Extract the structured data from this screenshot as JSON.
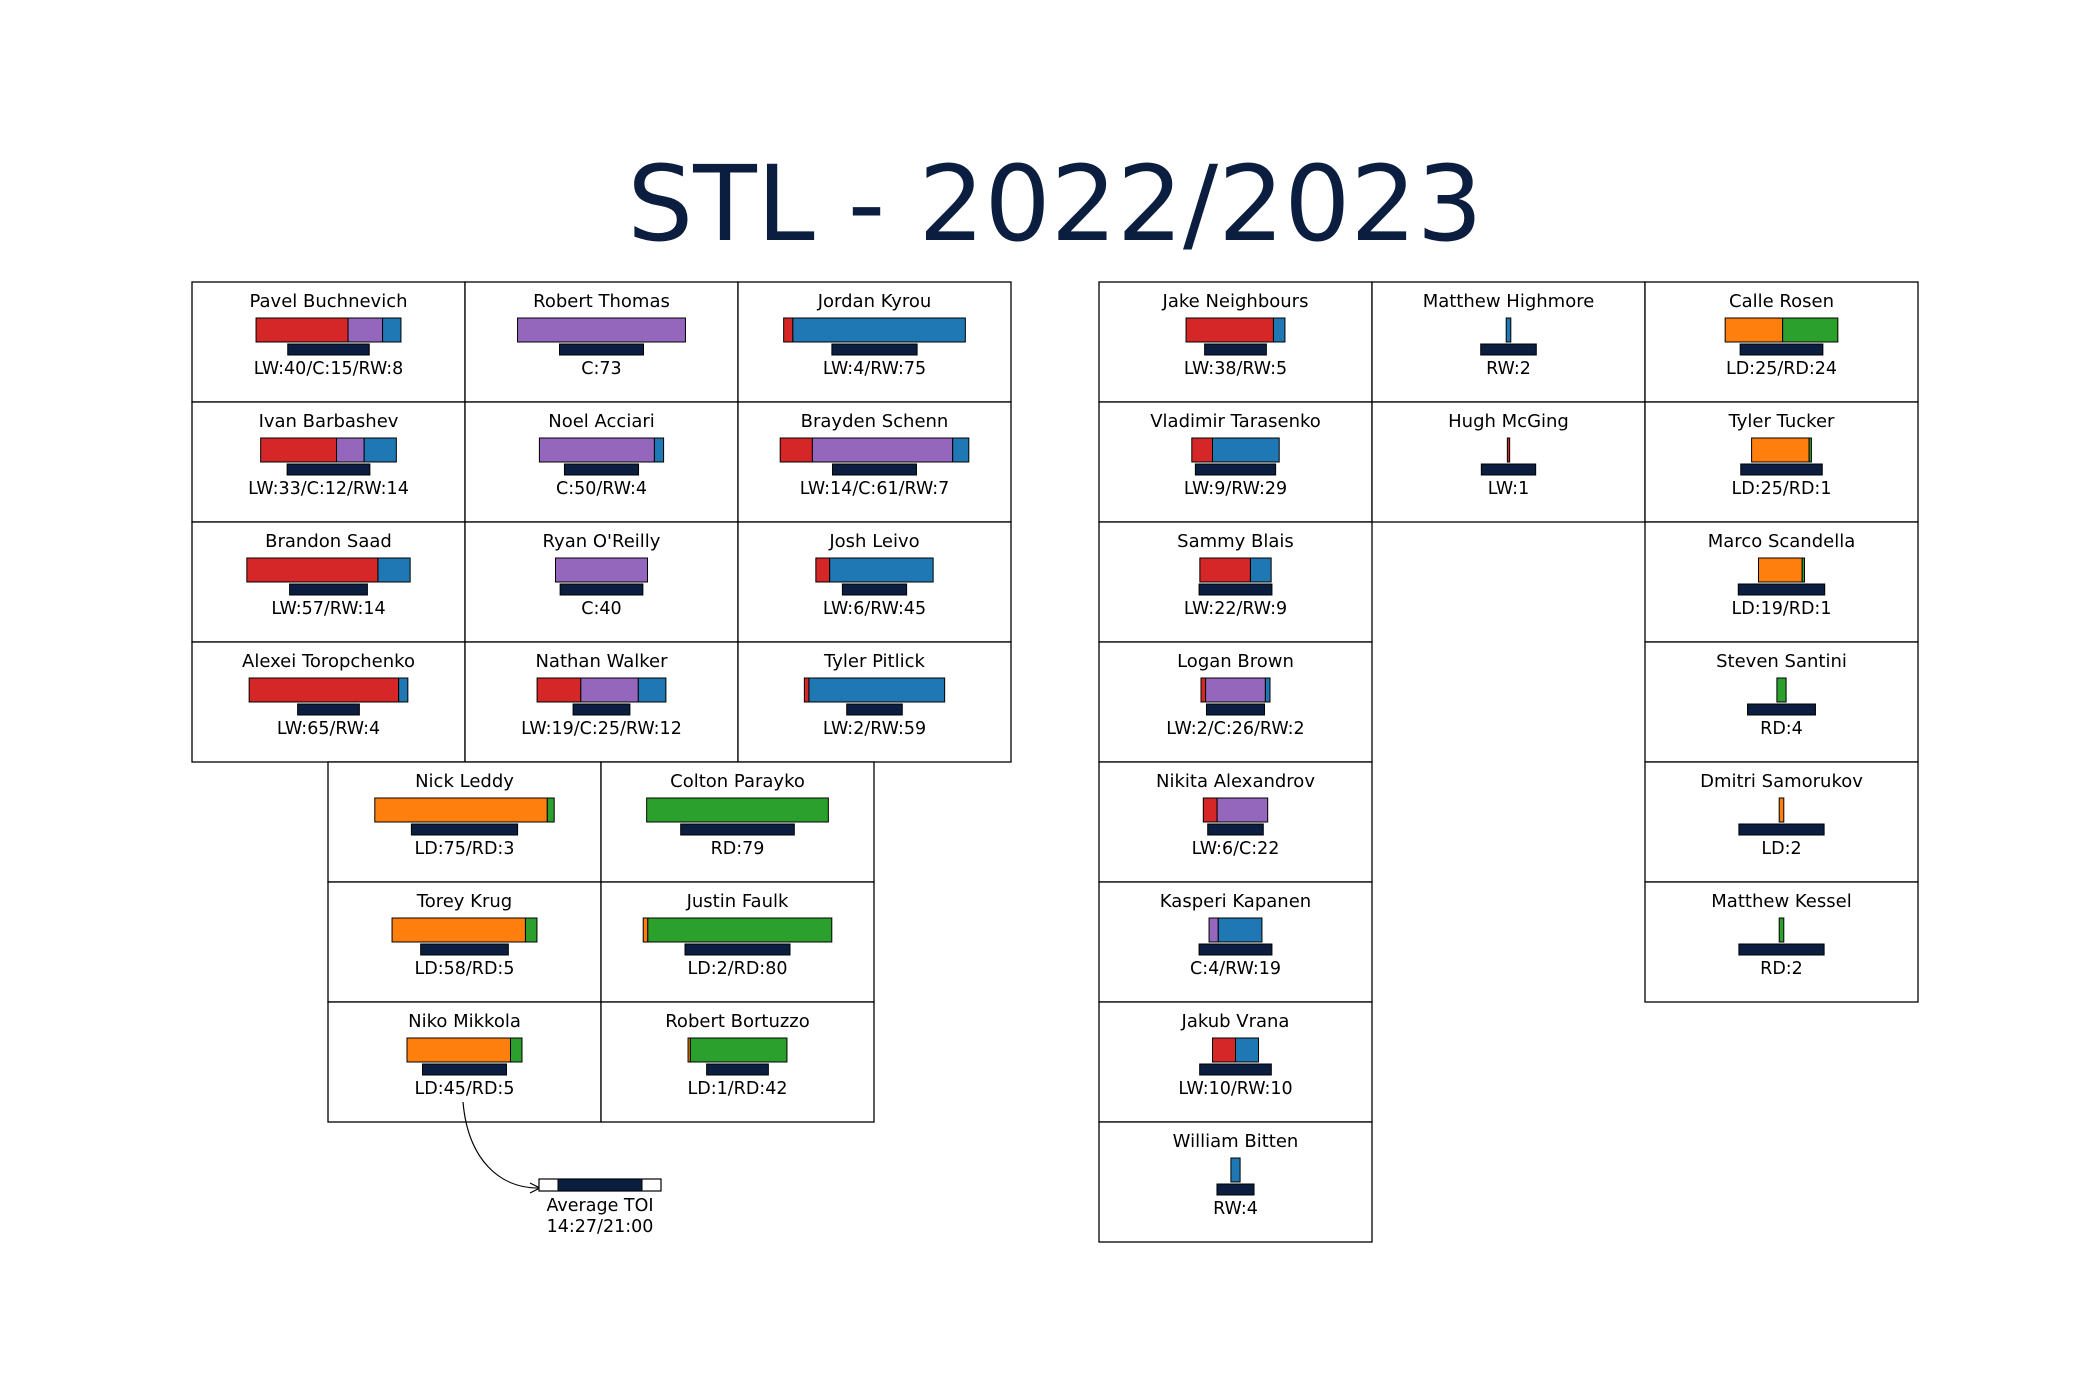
{
  "title": "STL - 2022/2023",
  "colors": {
    "title": "#0c1e3f",
    "toi_bar": "#0c1e3f",
    "LW": "#d62728",
    "C": "#9467bd",
    "RW": "#1f77b4",
    "LD": "#ff7f0e",
    "RD": "#2ca02c"
  },
  "chart_data": {
    "type": "position-usage grid",
    "position_order": [
      "LW",
      "C",
      "RW",
      "LD",
      "RD"
    ],
    "groups": {
      "forwards_lines": [
        [
          {
            "name": "Pavel Buchnevich",
            "counts": {
              "LW": 40,
              "C": 15,
              "RW": 8
            },
            "label": "LW:40/C:15/RW:8",
            "toi_frac": 0.66
          },
          {
            "name": "Robert Thomas",
            "counts": {
              "C": 73
            },
            "label": "C:73",
            "toi_frac": 0.68
          },
          {
            "name": "Jordan Kyrou",
            "counts": {
              "LW": 4,
              "RW": 75
            },
            "label": "LW:4/RW:75",
            "toi_frac": 0.69
          }
        ],
        [
          {
            "name": "Ivan Barbashev",
            "counts": {
              "LW": 33,
              "C": 12,
              "RW": 14
            },
            "label": "LW:33/C:12/RW:14",
            "toi_frac": 0.67
          },
          {
            "name": "Noel Acciari",
            "counts": {
              "C": 50,
              "RW": 4
            },
            "label": "C:50/RW:4",
            "toi_frac": 0.6
          },
          {
            "name": "Brayden Schenn",
            "counts": {
              "LW": 14,
              "C": 61,
              "RW": 7
            },
            "label": "LW:14/C:61/RW:7",
            "toi_frac": 0.68
          }
        ],
        [
          {
            "name": "Brandon Saad",
            "counts": {
              "LW": 57,
              "RW": 14
            },
            "label": "LW:57/RW:14",
            "toi_frac": 0.63
          },
          {
            "name": "Ryan O'Reilly",
            "counts": {
              "C": 40
            },
            "label": "C:40",
            "toi_frac": 0.67
          },
          {
            "name": "Josh Leivo",
            "counts": {
              "LW": 6,
              "RW": 45
            },
            "label": "LW:6/RW:45",
            "toi_frac": 0.52
          }
        ],
        [
          {
            "name": "Alexei Toropchenko",
            "counts": {
              "LW": 65,
              "RW": 4
            },
            "label": "LW:65/RW:4",
            "toi_frac": 0.5
          },
          {
            "name": "Nathan Walker",
            "counts": {
              "LW": 19,
              "C": 25,
              "RW": 12
            },
            "label": "LW:19/C:25/RW:12",
            "toi_frac": 0.46
          },
          {
            "name": "Tyler Pitlick",
            "counts": {
              "LW": 2,
              "RW": 59
            },
            "label": "LW:2/RW:59",
            "toi_frac": 0.45
          }
        ]
      ],
      "defense_pairs": [
        [
          {
            "name": "Nick Leddy",
            "counts": {
              "LD": 75,
              "RD": 3
            },
            "label": "LD:75/RD:3",
            "toi_frac": 0.86
          },
          {
            "name": "Colton Parayko",
            "counts": {
              "RD": 79
            },
            "label": "RD:79",
            "toi_frac": 0.92
          }
        ],
        [
          {
            "name": "Torey Krug",
            "counts": {
              "LD": 58,
              "RD": 5
            },
            "label": "LD:58/RD:5",
            "toi_frac": 0.71
          },
          {
            "name": "Justin Faulk",
            "counts": {
              "LD": 2,
              "RD": 80
            },
            "label": "LD:2/RD:80",
            "toi_frac": 0.85
          }
        ],
        [
          {
            "name": "Niko Mikkola",
            "counts": {
              "LD": 45,
              "RD": 5
            },
            "label": "LD:45/RD:5",
            "toi_frac": 0.68
          },
          {
            "name": "Robert Bortuzzo",
            "counts": {
              "LD": 1,
              "RD": 42
            },
            "label": "LD:1/RD:42",
            "toi_frac": 0.5
          }
        ]
      ],
      "extra_forwards_a": [
        {
          "name": "Jake Neighbours",
          "counts": {
            "LW": 38,
            "RW": 5
          },
          "label": "LW:38/RW:5",
          "toi_frac": 0.5
        },
        {
          "name": "Vladimir Tarasenko",
          "counts": {
            "LW": 9,
            "RW": 29
          },
          "label": "LW:9/RW:29",
          "toi_frac": 0.65
        },
        {
          "name": "Sammy Blais",
          "counts": {
            "LW": 22,
            "RW": 9
          },
          "label": "LW:22/RW:9",
          "toi_frac": 0.59
        },
        {
          "name": "Logan Brown",
          "counts": {
            "LW": 2,
            "C": 26,
            "RW": 2
          },
          "label": "LW:2/C:26/RW:2",
          "toi_frac": 0.47
        },
        {
          "name": "Nikita Alexandrov",
          "counts": {
            "LW": 6,
            "C": 22
          },
          "label": "LW:6/C:22",
          "toi_frac": 0.45
        },
        {
          "name": "Kasperi Kapanen",
          "counts": {
            "C": 4,
            "RW": 19
          },
          "label": "C:4/RW:19",
          "toi_frac": 0.59
        },
        {
          "name": "Jakub Vrana",
          "counts": {
            "LW": 10,
            "RW": 10
          },
          "label": "LW:10/RW:10",
          "toi_frac": 0.58
        },
        {
          "name": "William Bitten",
          "counts": {
            "RW": 4
          },
          "label": "RW:4",
          "toi_frac": 0.3
        }
      ],
      "extra_forwards_b": [
        {
          "name": "Matthew Highmore",
          "counts": {
            "RW": 2
          },
          "label": "RW:2",
          "toi_frac": 0.45
        },
        {
          "name": "Hugh McGing",
          "counts": {
            "LW": 1
          },
          "label": "LW:1",
          "toi_frac": 0.44
        }
      ],
      "extra_defense": [
        {
          "name": "Calle Rosen",
          "counts": {
            "LD": 25,
            "RD": 24
          },
          "label": "LD:25/RD:24",
          "toi_frac": 0.67
        },
        {
          "name": "Tyler Tucker",
          "counts": {
            "LD": 25,
            "RD": 1
          },
          "label": "LD:25/RD:1",
          "toi_frac": 0.66
        },
        {
          "name": "Marco Scandella",
          "counts": {
            "LD": 19,
            "RD": 1
          },
          "label": "LD:19/RD:1",
          "toi_frac": 0.7
        },
        {
          "name": "Steven Santini",
          "counts": {
            "RD": 4
          },
          "label": "RD:4",
          "toi_frac": 0.55
        },
        {
          "name": "Dmitri Samorukov",
          "counts": {
            "LD": 2
          },
          "label": "LD:2",
          "toi_frac": 0.69
        },
        {
          "name": "Matthew Kessel",
          "counts": {
            "RD": 2
          },
          "label": "RD:2",
          "toi_frac": 0.69
        }
      ]
    },
    "legend": {
      "label": "Average TOI",
      "value": "14:27/21:00",
      "toi_frac": 0.6886
    }
  }
}
